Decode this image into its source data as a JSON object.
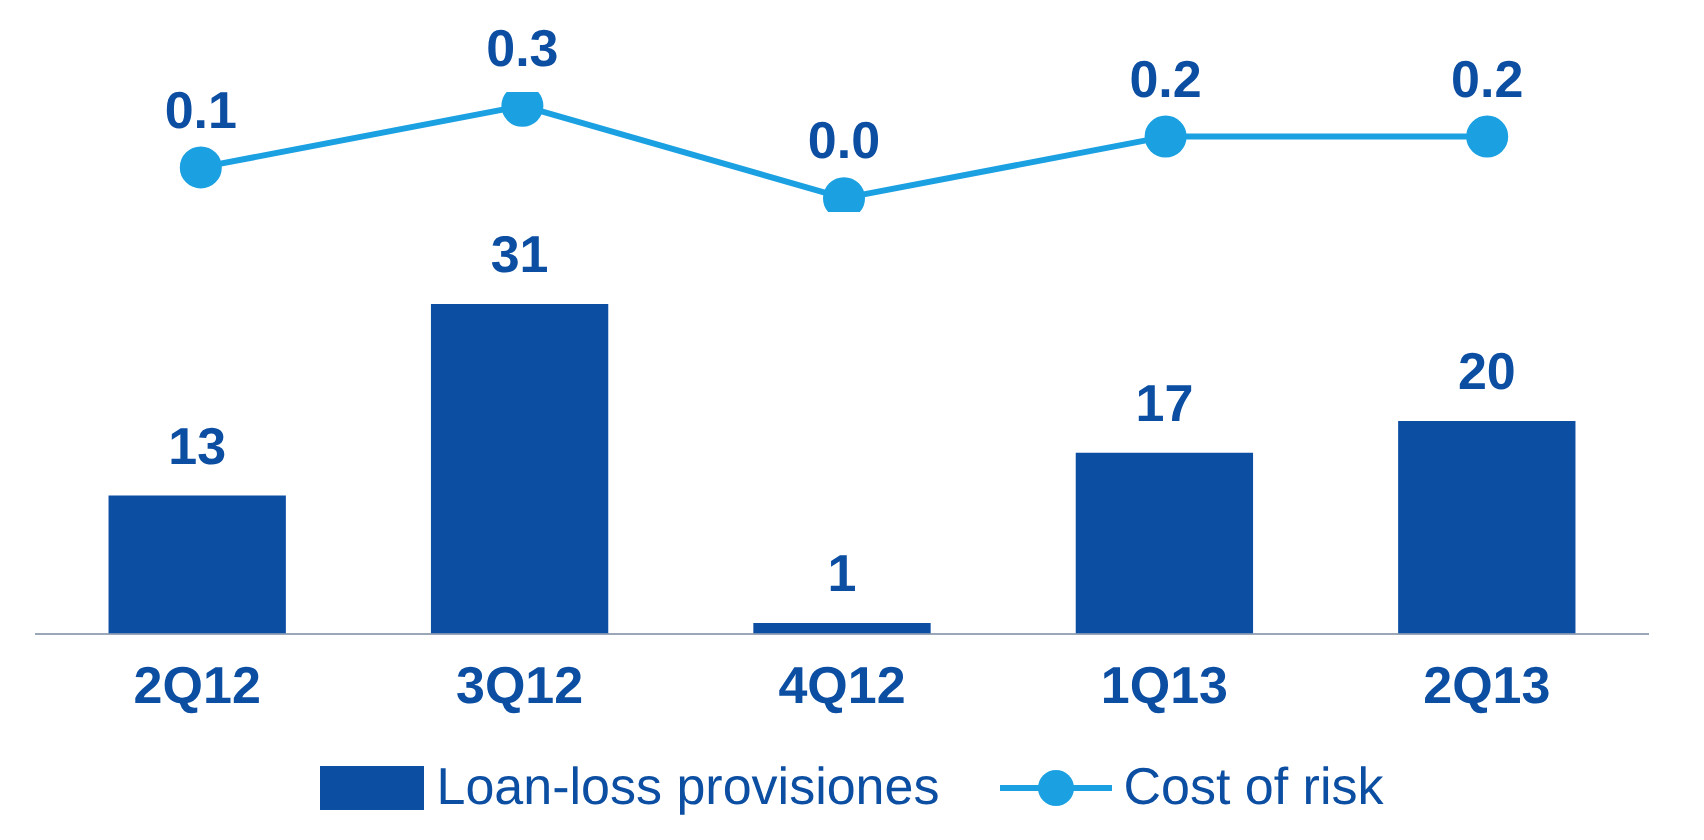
{
  "chart_data": [
    {
      "type": "line",
      "categories": [
        null,
        null,
        null,
        null,
        null
      ],
      "tick_labels": false,
      "marker": "circle",
      "legend": "bottom",
      "series": [
        {
          "name": "Cost of risk",
          "color": "#1ba1e2",
          "values": [
            0.1,
            0.3,
            0.0,
            0.2,
            0.2
          ],
          "value_labels": [
            "0.1",
            "0.3",
            "0.0",
            "0.2",
            "0.2"
          ]
        }
      ]
    },
    {
      "type": "bar",
      "categories": [
        "2Q12",
        "3Q12",
        "4Q12",
        "1Q13",
        "2Q13"
      ],
      "tick_labels": "x",
      "data_labels": true,
      "legend": "bottom",
      "series": [
        {
          "name": "Loan-loss provisiones",
          "color": "#0b4ea2",
          "values": [
            13,
            31,
            1,
            17,
            20
          ]
        }
      ]
    }
  ]
}
